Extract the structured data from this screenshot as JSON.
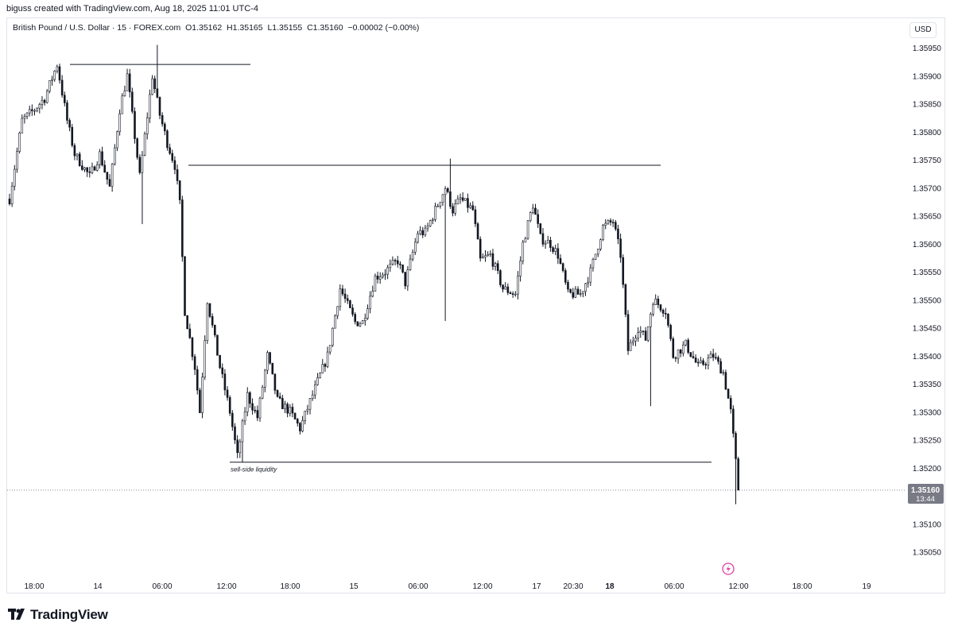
{
  "header": {
    "credit": "biguss created with TradingView.com, Aug 18, 2025 11:01 UTC-4"
  },
  "legend": {
    "symbol": "British Pound / U.S. Dollar · 15 · FOREX.com",
    "open": "O1.35162",
    "high": "H1.35165",
    "low": "L1.35155",
    "close": "C1.35160",
    "change": "−0.00002 (−0.00%)"
  },
  "currency_button": "USD",
  "footer": {
    "brand": "TradingView"
  },
  "colors": {
    "candle_up": "#131722",
    "candle_down": "#131722",
    "price_label_bg": "#787b86",
    "flash_icon": "#e040a0"
  },
  "chart_data": {
    "type": "candlestick",
    "y_ticks": [
      "1.35950",
      "1.35900",
      "1.35850",
      "1.35800",
      "1.35750",
      "1.35700",
      "1.35650",
      "1.35600",
      "1.35550",
      "1.35500",
      "1.35450",
      "1.35400",
      "1.35350",
      "1.35300",
      "1.35250",
      "1.35200",
      "1.35150",
      "1.35100",
      "1.35050"
    ],
    "x_ticks": [
      "18:00",
      "14",
      "06:00",
      "12:00",
      "18:00",
      "15",
      "06:00",
      "12:00",
      "17",
      "20:30",
      "18",
      "06:00",
      "12:00",
      "18:00",
      "19"
    ],
    "ylim": [
      1.35,
      1.36
    ],
    "current_price": {
      "value": "1.35160",
      "countdown": "13:44"
    },
    "annotation": "sell-side liquidity",
    "levels": [
      {
        "price": 1.3592,
        "from": 1,
        "to": 8
      },
      {
        "price": 1.3574,
        "from": 5,
        "to": 20
      },
      {
        "price": 1.3521,
        "from": 7,
        "to": 23
      }
    ],
    "waypoints": [
      [
        0,
        1.3568
      ],
      [
        5,
        1.3582
      ],
      [
        10,
        1.3584
      ],
      [
        14,
        1.3586
      ],
      [
        19,
        1.3592
      ],
      [
        23,
        1.3582
      ],
      [
        26,
        1.3576
      ],
      [
        32,
        1.3572
      ],
      [
        36,
        1.3576
      ],
      [
        40,
        1.357
      ],
      [
        44,
        1.3584
      ],
      [
        47,
        1.359
      ],
      [
        52,
        1.3572
      ],
      [
        57,
        1.359
      ],
      [
        60,
        1.3583
      ],
      [
        63,
        1.3578
      ],
      [
        66,
        1.3574
      ],
      [
        68,
        1.3567
      ],
      [
        70,
        1.3548
      ],
      [
        74,
        1.3538
      ],
      [
        76,
        1.353
      ],
      [
        79,
        1.355
      ],
      [
        84,
        1.3538
      ],
      [
        88,
        1.353
      ],
      [
        91,
        1.3522
      ],
      [
        95,
        1.3533
      ],
      [
        99,
        1.3529
      ],
      [
        103,
        1.354
      ],
      [
        107,
        1.3532
      ],
      [
        112,
        1.353
      ],
      [
        116,
        1.3527
      ],
      [
        121,
        1.3533
      ],
      [
        127,
        1.354
      ],
      [
        132,
        1.3552
      ],
      [
        138,
        1.3546
      ],
      [
        141,
        1.3546
      ],
      [
        146,
        1.3554
      ],
      [
        150,
        1.3555
      ],
      [
        155,
        1.3557
      ],
      [
        158,
        1.3553
      ],
      [
        163,
        1.3562
      ],
      [
        166,
        1.3562
      ],
      [
        170,
        1.3566
      ],
      [
        174,
        1.357
      ],
      [
        177,
        1.3566
      ],
      [
        180,
        1.3568
      ],
      [
        185,
        1.3566
      ],
      [
        188,
        1.3557
      ],
      [
        192,
        1.3558
      ],
      [
        197,
        1.3552
      ],
      [
        202,
        1.3551
      ],
      [
        205,
        1.356
      ],
      [
        209,
        1.3567
      ],
      [
        212,
        1.3561
      ],
      [
        216,
        1.356
      ],
      [
        219,
        1.3558
      ],
      [
        223,
        1.3551
      ],
      [
        228,
        1.3551
      ],
      [
        232,
        1.3555
      ],
      [
        237,
        1.3563
      ],
      [
        241,
        1.3564
      ],
      [
        244,
        1.3558
      ],
      [
        247,
        1.3541
      ],
      [
        251,
        1.3545
      ],
      [
        254,
        1.3543
      ],
      [
        257,
        1.355
      ],
      [
        262,
        1.3548
      ],
      [
        265,
        1.354
      ],
      [
        270,
        1.3542
      ],
      [
        275,
        1.3538
      ],
      [
        281,
        1.354
      ],
      [
        285,
        1.3537
      ],
      [
        288,
        1.353
      ],
      [
        290,
        1.3521
      ],
      [
        291,
        1.3516
      ]
    ]
  }
}
